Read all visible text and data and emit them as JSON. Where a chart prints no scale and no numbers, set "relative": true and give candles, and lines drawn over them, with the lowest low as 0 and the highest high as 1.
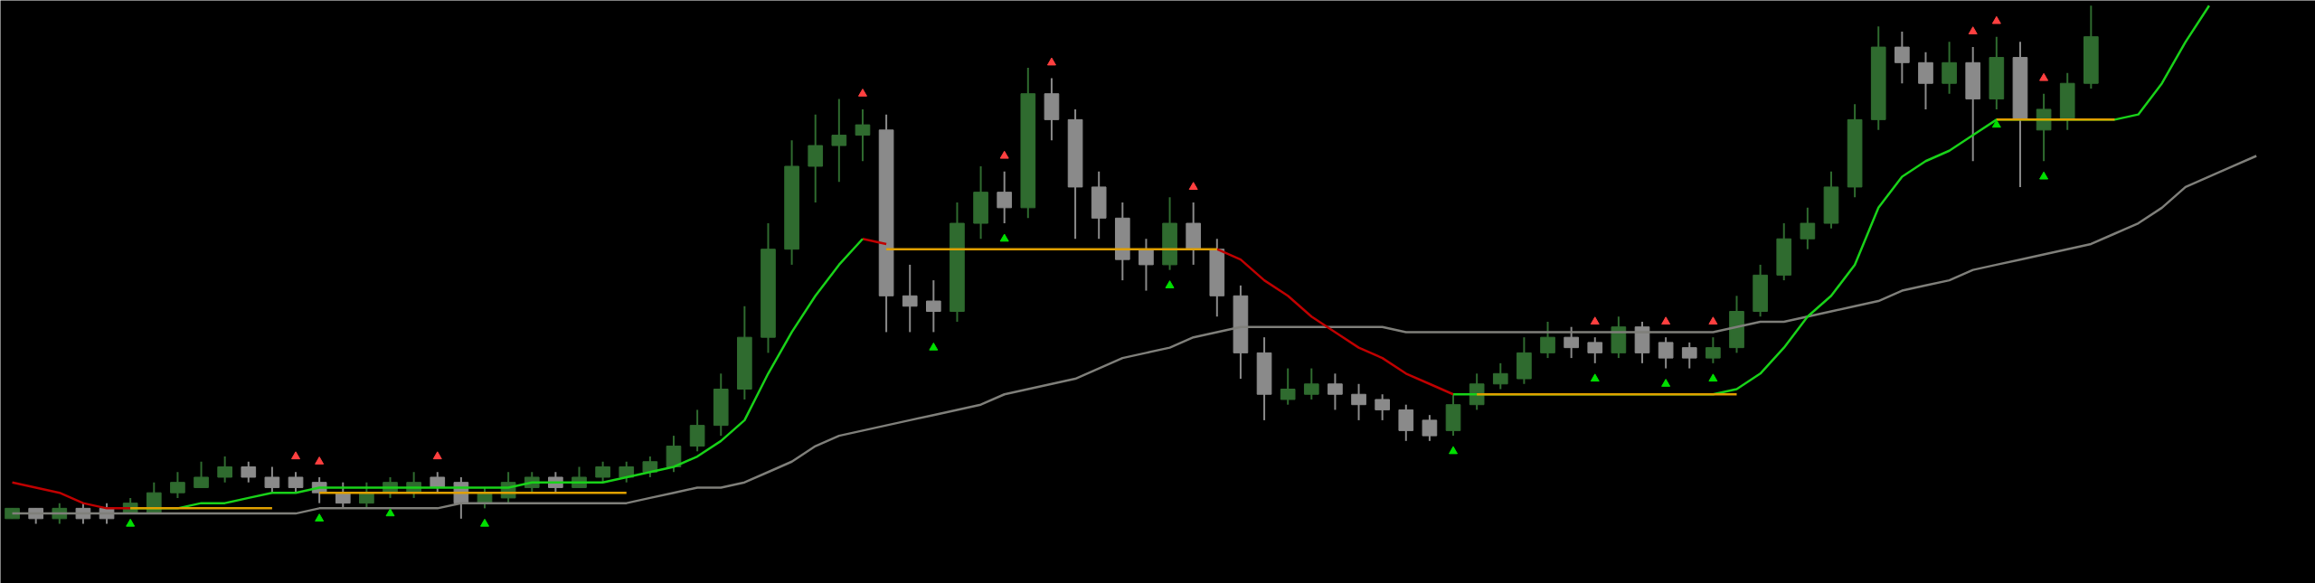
{
  "chart_data": {
    "type": "candlestick",
    "relative": true,
    "grid": false,
    "legend": false,
    "categories": [
      null,
      null,
      null,
      null,
      null,
      null,
      null,
      null,
      null,
      null,
      null,
      null,
      null,
      null,
      null,
      null,
      null,
      null,
      null,
      null,
      null,
      null,
      null,
      null,
      null,
      null,
      null,
      null,
      null,
      null,
      null,
      null,
      null,
      null,
      null,
      null,
      null,
      null,
      null,
      null,
      null,
      null,
      null,
      null,
      null,
      null,
      null,
      null,
      null,
      null,
      null,
      null,
      null,
      null,
      null,
      null,
      null,
      null,
      null,
      null,
      null,
      null,
      null,
      null,
      null,
      null,
      null,
      null,
      null,
      null,
      null,
      null,
      null,
      null,
      null,
      null,
      null,
      null,
      null,
      null,
      null,
      null,
      null,
      null,
      null,
      null,
      null,
      null,
      null,
      null,
      null,
      null,
      null,
      null,
      null,
      null
    ],
    "ohlc": [
      [
        0.01,
        0.03,
        0.01,
        0.03
      ],
      [
        0.03,
        0.03,
        0.0,
        0.01
      ],
      [
        0.01,
        0.04,
        0.0,
        0.03
      ],
      [
        0.03,
        0.04,
        0.0,
        0.01
      ],
      [
        0.03,
        0.04,
        0.0,
        0.01
      ],
      [
        0.02,
        0.05,
        0.02,
        0.04
      ],
      [
        0.02,
        0.08,
        0.02,
        0.06
      ],
      [
        0.06,
        0.1,
        0.05,
        0.08
      ],
      [
        0.07,
        0.12,
        0.07,
        0.09
      ],
      [
        0.09,
        0.13,
        0.08,
        0.11
      ],
      [
        0.11,
        0.12,
        0.08,
        0.09
      ],
      [
        0.09,
        0.11,
        0.06,
        0.07
      ],
      [
        0.09,
        0.1,
        0.06,
        0.07
      ],
      [
        0.08,
        0.09,
        0.04,
        0.06
      ],
      [
        0.06,
        0.08,
        0.03,
        0.04
      ],
      [
        0.04,
        0.08,
        0.03,
        0.06
      ],
      [
        0.06,
        0.09,
        0.05,
        0.08
      ],
      [
        0.06,
        0.1,
        0.05,
        0.08
      ],
      [
        0.09,
        0.1,
        0.06,
        0.07
      ],
      [
        0.08,
        0.09,
        0.01,
        0.04
      ],
      [
        0.04,
        0.07,
        0.03,
        0.06
      ],
      [
        0.05,
        0.1,
        0.04,
        0.08
      ],
      [
        0.07,
        0.1,
        0.06,
        0.09
      ],
      [
        0.09,
        0.1,
        0.06,
        0.07
      ],
      [
        0.07,
        0.11,
        0.07,
        0.09
      ],
      [
        0.09,
        0.12,
        0.08,
        0.11
      ],
      [
        0.09,
        0.12,
        0.08,
        0.11
      ],
      [
        0.1,
        0.13,
        0.09,
        0.12
      ],
      [
        0.11,
        0.17,
        0.1,
        0.15
      ],
      [
        0.15,
        0.22,
        0.14,
        0.19
      ],
      [
        0.19,
        0.29,
        0.17,
        0.26
      ],
      [
        0.26,
        0.42,
        0.24,
        0.36
      ],
      [
        0.36,
        0.58,
        0.33,
        0.53
      ],
      [
        0.53,
        0.74,
        0.5,
        0.69
      ],
      [
        0.69,
        0.79,
        0.62,
        0.73
      ],
      [
        0.73,
        0.82,
        0.66,
        0.75
      ],
      [
        0.75,
        0.8,
        0.7,
        0.77
      ],
      [
        0.76,
        0.79,
        0.37,
        0.44
      ],
      [
        0.44,
        0.5,
        0.37,
        0.42
      ],
      [
        0.43,
        0.47,
        0.37,
        0.41
      ],
      [
        0.41,
        0.62,
        0.39,
        0.58
      ],
      [
        0.58,
        0.69,
        0.55,
        0.64
      ],
      [
        0.64,
        0.68,
        0.58,
        0.61
      ],
      [
        0.61,
        0.88,
        0.59,
        0.83
      ],
      [
        0.83,
        0.86,
        0.74,
        0.78
      ],
      [
        0.78,
        0.8,
        0.55,
        0.65
      ],
      [
        0.65,
        0.68,
        0.55,
        0.59
      ],
      [
        0.59,
        0.62,
        0.47,
        0.51
      ],
      [
        0.53,
        0.55,
        0.45,
        0.5
      ],
      [
        0.5,
        0.63,
        0.49,
        0.58
      ],
      [
        0.58,
        0.62,
        0.5,
        0.53
      ],
      [
        0.53,
        0.55,
        0.4,
        0.44
      ],
      [
        0.44,
        0.46,
        0.28,
        0.33
      ],
      [
        0.33,
        0.36,
        0.2,
        0.25
      ],
      [
        0.24,
        0.3,
        0.23,
        0.26
      ],
      [
        0.25,
        0.3,
        0.24,
        0.27
      ],
      [
        0.27,
        0.29,
        0.22,
        0.25
      ],
      [
        0.25,
        0.27,
        0.2,
        0.23
      ],
      [
        0.24,
        0.25,
        0.2,
        0.22
      ],
      [
        0.22,
        0.23,
        0.16,
        0.18
      ],
      [
        0.2,
        0.21,
        0.16,
        0.17
      ],
      [
        0.18,
        0.25,
        0.17,
        0.23
      ],
      [
        0.23,
        0.29,
        0.22,
        0.27
      ],
      [
        0.27,
        0.31,
        0.26,
        0.29
      ],
      [
        0.28,
        0.36,
        0.27,
        0.33
      ],
      [
        0.33,
        0.39,
        0.32,
        0.36
      ],
      [
        0.36,
        0.38,
        0.32,
        0.34
      ],
      [
        0.35,
        0.36,
        0.31,
        0.33
      ],
      [
        0.33,
        0.4,
        0.32,
        0.38
      ],
      [
        0.38,
        0.39,
        0.31,
        0.33
      ],
      [
        0.35,
        0.36,
        0.3,
        0.32
      ],
      [
        0.34,
        0.35,
        0.3,
        0.32
      ],
      [
        0.32,
        0.36,
        0.31,
        0.34
      ],
      [
        0.34,
        0.44,
        0.33,
        0.41
      ],
      [
        0.41,
        0.5,
        0.4,
        0.48
      ],
      [
        0.48,
        0.58,
        0.47,
        0.55
      ],
      [
        0.55,
        0.61,
        0.53,
        0.58
      ],
      [
        0.58,
        0.68,
        0.57,
        0.65
      ],
      [
        0.65,
        0.81,
        0.63,
        0.78
      ],
      [
        0.78,
        0.96,
        0.76,
        0.92
      ],
      [
        0.92,
        0.95,
        0.85,
        0.89
      ],
      [
        0.89,
        0.91,
        0.8,
        0.85
      ],
      [
        0.85,
        0.93,
        0.83,
        0.89
      ],
      [
        0.89,
        0.92,
        0.7,
        0.82
      ],
      [
        0.82,
        0.94,
        0.8,
        0.9
      ],
      [
        0.9,
        0.93,
        0.65,
        0.78
      ],
      [
        0.76,
        0.83,
        0.7,
        0.8
      ],
      [
        0.78,
        0.87,
        0.76,
        0.85
      ],
      [
        0.85,
        1.0,
        0.84,
        0.94
      ],
      null,
      null,
      null,
      null,
      null,
      null,
      null
    ],
    "colors": [
      "#2f6b2f",
      "#8a8a8a",
      "#2f6b2f",
      "#8a8a8a",
      "#8a8a8a",
      "#2f6b2f",
      "#2f6b2f",
      "#2f6b2f",
      "#2f6b2f",
      "#2f6b2f",
      "#8a8a8a",
      "#8a8a8a",
      "#8a8a8a",
      "#8a8a8a",
      "#8a8a8a",
      "#2f6b2f",
      "#2f6b2f",
      "#2f6b2f",
      "#8a8a8a",
      "#8a8a8a",
      "#2f6b2f",
      "#2f6b2f",
      "#2f6b2f",
      "#8a8a8a",
      "#2f6b2f",
      "#2f6b2f",
      "#2f6b2f",
      "#2f6b2f",
      "#2f6b2f",
      "#2f6b2f",
      "#2f6b2f",
      "#2f6b2f",
      "#2f6b2f",
      "#2f6b2f",
      "#2f6b2f",
      "#2f6b2f",
      "#2f6b2f",
      "#8a8a8a",
      "#8a8a8a",
      "#8a8a8a",
      "#2f6b2f",
      "#2f6b2f",
      "#8a8a8a",
      "#2f6b2f",
      "#8a8a8a",
      "#8a8a8a",
      "#8a8a8a",
      "#8a8a8a",
      "#8a8a8a",
      "#2f6b2f",
      "#8a8a8a",
      "#8a8a8a",
      "#8a8a8a",
      "#8a8a8a",
      "#2f6b2f",
      "#2f6b2f",
      "#8a8a8a",
      "#8a8a8a",
      "#8a8a8a",
      "#8a8a8a",
      "#8a8a8a",
      "#2f6b2f",
      "#2f6b2f",
      "#2f6b2f",
      "#2f6b2f",
      "#2f6b2f",
      "#8a8a8a",
      "#8a8a8a",
      "#2f6b2f",
      "#8a8a8a",
      "#8a8a8a",
      "#8a8a8a",
      "#2f6b2f",
      "#2f6b2f",
      "#2f6b2f",
      "#2f6b2f",
      "#2f6b2f",
      "#2f6b2f",
      "#2f6b2f",
      "#2f6b2f",
      "#8a8a8a",
      "#8a8a8a",
      "#2f6b2f",
      "#8a8a8a",
      "#2f6b2f",
      "#8a8a8a",
      "#2f6b2f",
      "#2f6b2f",
      "#2f6b2f",
      null,
      null,
      null,
      null,
      null,
      null,
      null
    ],
    "series": [
      {
        "type": "line",
        "color": "#7f7f7a",
        "values": [
          0.02,
          0.02,
          0.02,
          0.02,
          0.02,
          0.02,
          0.02,
          0.02,
          0.02,
          0.02,
          0.02,
          0.02,
          0.02,
          0.03,
          0.03,
          0.03,
          0.03,
          0.03,
          0.03,
          0.04,
          0.04,
          0.04,
          0.04,
          0.04,
          0.04,
          0.04,
          0.04,
          0.05,
          0.06,
          0.07,
          0.07,
          0.08,
          0.1,
          0.12,
          0.15,
          0.17,
          0.18,
          0.19,
          0.2,
          0.21,
          0.22,
          0.23,
          0.25,
          0.26,
          0.27,
          0.28,
          0.3,
          0.32,
          0.33,
          0.34,
          0.36,
          0.37,
          0.38,
          0.38,
          0.38,
          0.38,
          0.38,
          0.38,
          0.38,
          0.37,
          0.37,
          0.37,
          0.37,
          0.37,
          0.37,
          0.37,
          0.37,
          0.37,
          0.37,
          0.37,
          0.37,
          0.37,
          0.37,
          0.38,
          0.39,
          0.39,
          0.4,
          0.41,
          0.42,
          0.43,
          0.45,
          0.46,
          0.47,
          0.49,
          0.5,
          0.51,
          0.52,
          0.53,
          0.54,
          0.56,
          0.58,
          0.61,
          0.65,
          0.67,
          0.69,
          0.71
        ]
      },
      {
        "type": "line",
        "color": "#c00000",
        "values": [
          0.08,
          0.07,
          0.06,
          0.04,
          0.03,
          0.03,
          null,
          null,
          null,
          null,
          null,
          null,
          null,
          null,
          null,
          null,
          null,
          null,
          null,
          null,
          null,
          null,
          null,
          null,
          null,
          null,
          null,
          null,
          null,
          null,
          null,
          null,
          null,
          null,
          null,
          null,
          0.55,
          0.54,
          null,
          null,
          null,
          null,
          null,
          null,
          null,
          null,
          null,
          null,
          null,
          null,
          null,
          0.53,
          0.51,
          0.47,
          0.44,
          0.4,
          0.37,
          0.34,
          0.32,
          0.29,
          0.27,
          0.25,
          null,
          null,
          null,
          null,
          null,
          null,
          null,
          null,
          null,
          null,
          null,
          null,
          null,
          null,
          null,
          null,
          null,
          null,
          null,
          null,
          null,
          null,
          null,
          null,
          null,
          null,
          null,
          null,
          null,
          null,
          null,
          null,
          null,
          null
        ]
      },
      {
        "type": "line",
        "color": "#19d219",
        "values": [
          null,
          null,
          null,
          null,
          null,
          0.03,
          0.03,
          0.03,
          0.04,
          0.04,
          0.05,
          0.06,
          0.06,
          0.07,
          0.07,
          0.07,
          0.07,
          0.07,
          0.07,
          0.07,
          0.07,
          0.07,
          0.08,
          0.08,
          0.08,
          0.08,
          0.09,
          0.1,
          0.11,
          0.13,
          0.16,
          0.2,
          0.29,
          0.37,
          0.44,
          0.5,
          0.55,
          null,
          null,
          null,
          null,
          null,
          null,
          null,
          null,
          null,
          null,
          null,
          null,
          null,
          null,
          null,
          null,
          null,
          null,
          null,
          null,
          null,
          null,
          null,
          null,
          0.25,
          0.25,
          0.25,
          0.25,
          0.25,
          0.25,
          0.25,
          0.25,
          0.25,
          0.25,
          0.25,
          0.25,
          0.26,
          0.29,
          0.34,
          0.4,
          0.44,
          0.5,
          0.61,
          0.67,
          0.7,
          0.72,
          0.75,
          0.78,
          0.78,
          0.78,
          0.78,
          0.78,
          0.78,
          0.79,
          0.85,
          0.93,
          1.0,
          null,
          null
        ]
      },
      {
        "type": "line",
        "color": "#e0a000",
        "values": [
          null,
          null,
          null,
          null,
          null,
          0.03,
          0.03,
          0.03,
          0.03,
          0.03,
          0.03,
          0.03,
          null,
          0.06,
          0.06,
          0.06,
          0.06,
          0.06,
          0.06,
          0.06,
          0.06,
          0.06,
          0.06,
          0.06,
          0.06,
          0.06,
          0.06,
          null,
          null,
          null,
          null,
          null,
          null,
          null,
          null,
          null,
          null,
          0.53,
          0.53,
          0.53,
          0.53,
          0.53,
          0.53,
          0.53,
          0.53,
          0.53,
          0.53,
          0.53,
          0.53,
          0.53,
          0.53,
          0.53,
          null,
          null,
          null,
          null,
          null,
          null,
          null,
          null,
          null,
          null,
          0.25,
          0.25,
          0.25,
          0.25,
          0.25,
          0.25,
          0.25,
          0.25,
          0.25,
          0.25,
          0.25,
          0.25,
          null,
          null,
          null,
          null,
          null,
          null,
          null,
          null,
          null,
          null,
          0.78,
          0.78,
          0.78,
          0.78,
          0.78,
          0.78,
          null,
          null,
          null,
          null,
          null,
          null
        ]
      },
      {
        "type": "scatter",
        "color": "#00e000",
        "marker": "triangle",
        "values": [
          null,
          null,
          null,
          null,
          null,
          0.0,
          null,
          null,
          null,
          null,
          null,
          null,
          null,
          0.01,
          null,
          null,
          0.02,
          null,
          null,
          null,
          0.0,
          null,
          null,
          null,
          null,
          null,
          null,
          null,
          null,
          null,
          null,
          null,
          null,
          null,
          null,
          null,
          null,
          null,
          null,
          0.34,
          null,
          null,
          0.55,
          null,
          null,
          null,
          null,
          null,
          null,
          0.46,
          null,
          null,
          null,
          null,
          null,
          null,
          null,
          null,
          null,
          null,
          null,
          0.14,
          null,
          null,
          null,
          null,
          null,
          0.28,
          null,
          null,
          0.27,
          null,
          0.28,
          null,
          null,
          null,
          null,
          null,
          null,
          null,
          null,
          null,
          null,
          null,
          0.77,
          null,
          0.67,
          null,
          null,
          null,
          null,
          null,
          null,
          null,
          null,
          null
        ]
      },
      {
        "type": "scatter",
        "color": "#ff4040",
        "marker": "triangle",
        "values": [
          null,
          null,
          null,
          null,
          null,
          null,
          null,
          null,
          null,
          null,
          null,
          null,
          0.13,
          0.12,
          null,
          null,
          null,
          null,
          0.13,
          null,
          null,
          null,
          null,
          null,
          null,
          null,
          null,
          null,
          null,
          null,
          null,
          null,
          null,
          null,
          null,
          null,
          0.83,
          null,
          null,
          null,
          null,
          null,
          0.71,
          null,
          0.89,
          null,
          null,
          null,
          null,
          null,
          0.65,
          null,
          null,
          null,
          null,
          null,
          null,
          null,
          null,
          null,
          null,
          null,
          null,
          null,
          null,
          null,
          null,
          0.39,
          null,
          null,
          0.39,
          null,
          0.39,
          null,
          null,
          null,
          null,
          null,
          null,
          null,
          null,
          null,
          null,
          0.95,
          0.97,
          null,
          0.86,
          null,
          null,
          null,
          null,
          null,
          null,
          null,
          null,
          null
        ]
      }
    ]
  }
}
